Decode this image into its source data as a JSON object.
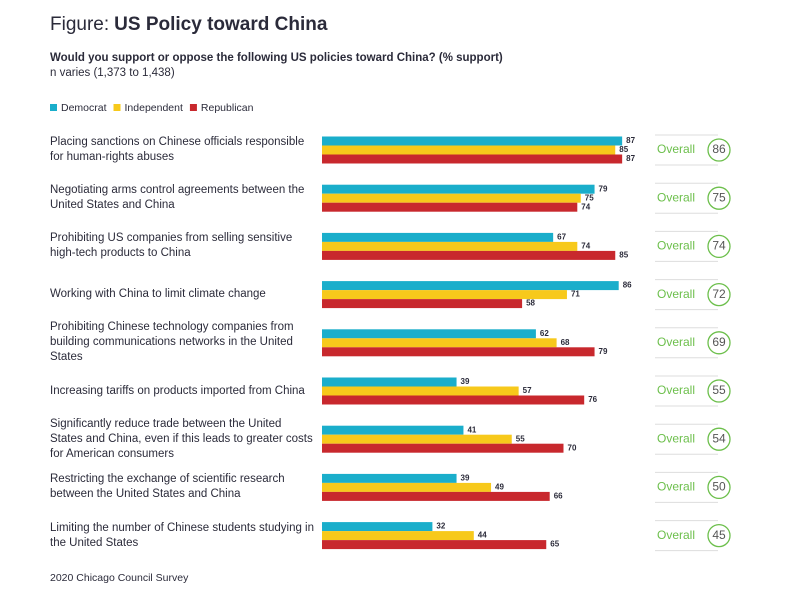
{
  "chart_data": {
    "type": "hbar",
    "figure_prefix": "Figure:",
    "title": "US Policy toward China",
    "subtitle": "Would you support or oppose the following US policies toward China? (% support)",
    "note": "n varies (1,373 to 1,438)",
    "source": "2020 Chicago Council Survey",
    "categories": [
      "Placing sanctions on Chinese officials responsible for human-rights abuses",
      "Negotiating arms control agreements between the United States and China",
      "Prohibiting US companies from selling sensitive high-tech products to China",
      "Working with China to limit climate change",
      "Prohibiting Chinese technology companies from building communications networks in the United States",
      "Increasing tariffs on products imported from China",
      "Significantly reduce trade between the United States and China, even if this leads to greater costs for American consumers",
      "Restricting the exchange of scientific research between the United States and China",
      "Limiting the number of Chinese students studying in the United States"
    ],
    "series": [
      {
        "name": "Democrat",
        "color": "#1aaecb",
        "values": [
          87,
          79,
          67,
          86,
          62,
          39,
          41,
          39,
          32
        ]
      },
      {
        "name": "Independent",
        "color": "#f7c91b",
        "values": [
          85,
          75,
          74,
          71,
          68,
          57,
          55,
          49,
          44
        ]
      },
      {
        "name": "Republican",
        "color": "#c8282d",
        "values": [
          87,
          74,
          85,
          58,
          79,
          76,
          70,
          66,
          65
        ]
      }
    ],
    "overall_label": "Overall",
    "overall": [
      86,
      75,
      74,
      72,
      69,
      55,
      54,
      50,
      45
    ],
    "overall_color": "#6cbf4b",
    "xlim": [
      0,
      100
    ]
  }
}
